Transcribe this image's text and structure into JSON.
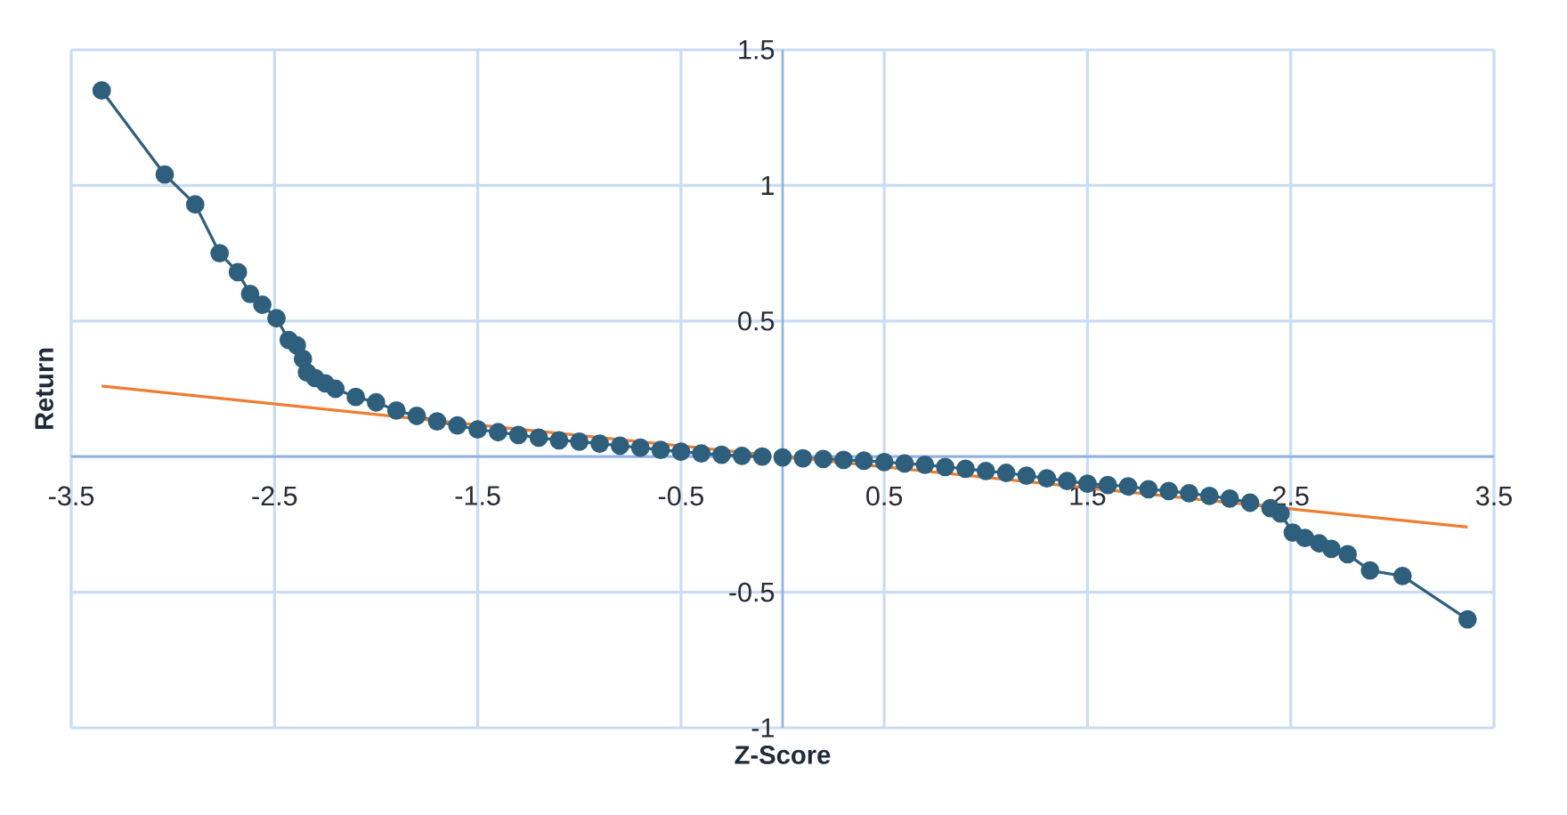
{
  "chart_data": {
    "type": "line",
    "xlabel": "Z-Score",
    "ylabel": "Return",
    "xlim": [
      -3.5,
      3.5
    ],
    "ylim": [
      -1,
      1.5
    ],
    "xticks": [
      -3.5,
      -2.5,
      -1.5,
      -0.5,
      0.5,
      1.5,
      2.5,
      3.5
    ],
    "yticks": [
      -1,
      -0.5,
      0,
      0.5,
      1,
      1.5
    ],
    "grid": true,
    "marker": "circle",
    "series": [
      {
        "color": "#2e5f7d",
        "x": [
          -3.35,
          -3.04,
          -2.89,
          -2.77,
          -2.68,
          -2.62,
          -2.56,
          -2.49,
          -2.43,
          -2.39,
          -2.36,
          -2.34,
          -2.3,
          -2.25,
          -2.2,
          -2.1,
          -2.0,
          -1.9,
          -1.8,
          -1.7,
          -1.6,
          -1.5,
          -1.4,
          -1.3,
          -1.2,
          -1.1,
          -1.0,
          -0.9,
          -0.8,
          -0.7,
          -0.6,
          -0.5,
          -0.4,
          -0.3,
          -0.2,
          -0.1,
          0.0,
          0.1,
          0.2,
          0.3,
          0.4,
          0.5,
          0.6,
          0.7,
          0.8,
          0.9,
          1.0,
          1.1,
          1.2,
          1.3,
          1.4,
          1.5,
          1.6,
          1.7,
          1.8,
          1.9,
          2.0,
          2.1,
          2.2,
          2.3,
          2.4,
          2.45,
          2.51,
          2.57,
          2.64,
          2.7,
          2.78,
          2.89,
          3.05,
          3.37
        ],
        "values": [
          1.35,
          1.04,
          0.93,
          0.75,
          0.68,
          0.6,
          0.56,
          0.51,
          0.43,
          0.41,
          0.36,
          0.31,
          0.29,
          0.27,
          0.25,
          0.22,
          0.2,
          0.17,
          0.15,
          0.13,
          0.115,
          0.1,
          0.09,
          0.08,
          0.07,
          0.06,
          0.055,
          0.048,
          0.04,
          0.033,
          0.025,
          0.018,
          0.012,
          0.007,
          0.003,
          0.0,
          -0.003,
          -0.006,
          -0.009,
          -0.012,
          -0.015,
          -0.02,
          -0.025,
          -0.03,
          -0.038,
          -0.045,
          -0.053,
          -0.06,
          -0.07,
          -0.08,
          -0.09,
          -0.1,
          -0.105,
          -0.11,
          -0.12,
          -0.127,
          -0.135,
          -0.145,
          -0.155,
          -0.17,
          -0.19,
          -0.21,
          -0.28,
          -0.3,
          -0.32,
          -0.34,
          -0.36,
          -0.42,
          -0.44,
          -0.6
        ]
      },
      {
        "color": "#ed7d31",
        "marker": "none",
        "x": [
          -3.35,
          3.37
        ],
        "values": [
          0.26,
          -0.26
        ]
      }
    ]
  }
}
